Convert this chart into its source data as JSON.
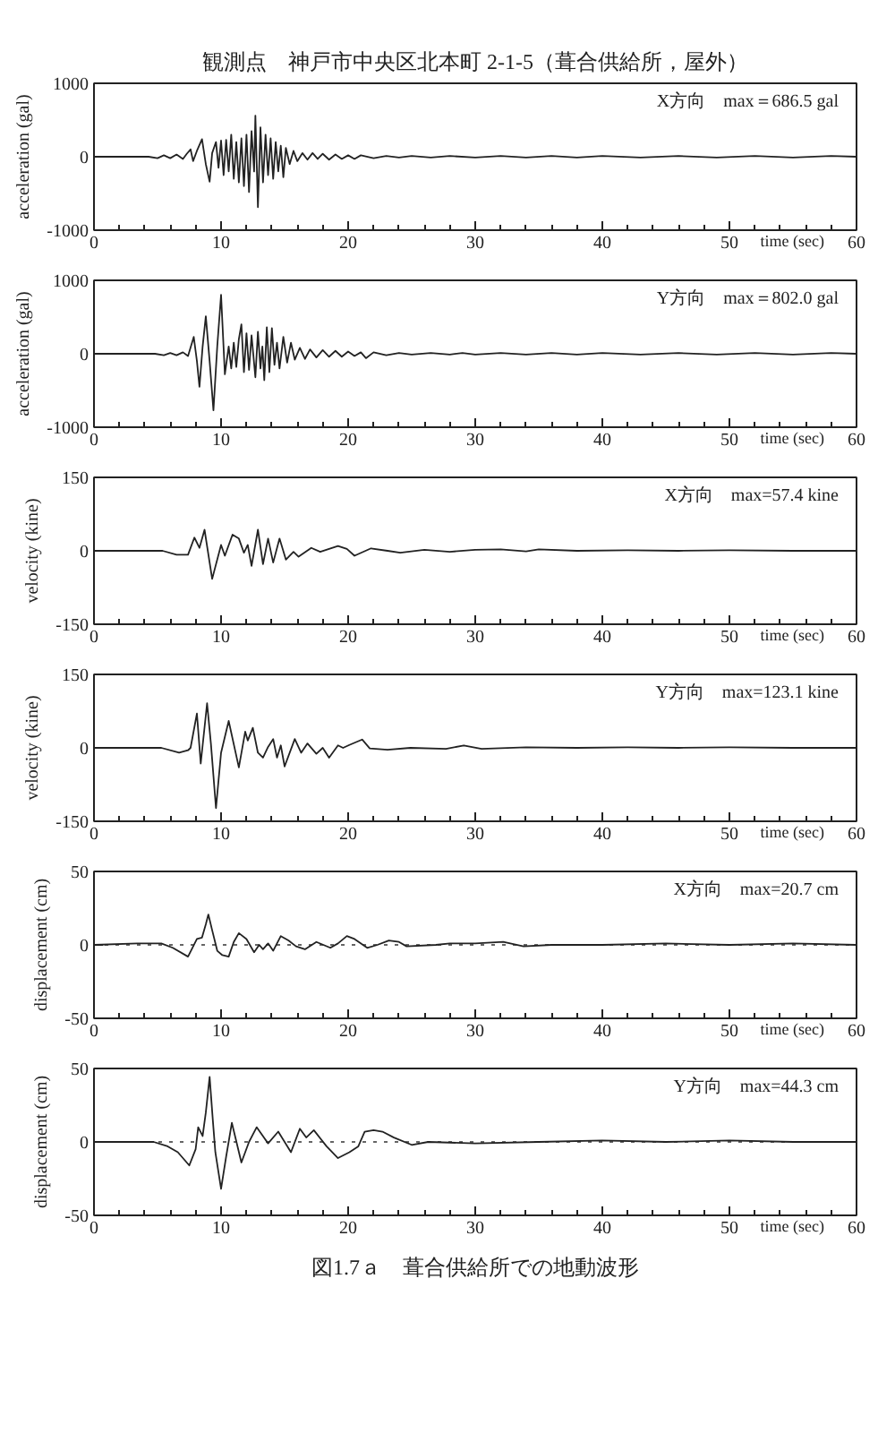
{
  "chart_data": [
    {
      "type": "line",
      "title": "観測点　神戸市中央区北本町 2-1-5（葺合供給所，屋外）",
      "xlabel": "time (sec)",
      "ylabel": "acceleration (gal)",
      "annotations": [
        "X方向　max＝686.5 gal"
      ],
      "color": "#222222",
      "xlim": [
        0,
        60
      ],
      "ylim": [
        -1000,
        1000
      ],
      "yticks": [
        -1000,
        0,
        1000
      ],
      "xticks": [
        0,
        {
          "value": 2,
          "label": null
        },
        {
          "value": 4,
          "label": null
        },
        {
          "value": 6,
          "label": null
        },
        {
          "value": 8,
          "label": null
        },
        10,
        {
          "value": 12,
          "label": null
        },
        {
          "value": 14,
          "label": null
        },
        {
          "value": 16,
          "label": null
        },
        {
          "value": 18,
          "label": null
        },
        20,
        {
          "value": 22,
          "label": null
        },
        {
          "value": 24,
          "label": null
        },
        {
          "value": 26,
          "label": null
        },
        {
          "value": 28,
          "label": null
        },
        30,
        {
          "value": 32,
          "label": null
        },
        {
          "value": 34,
          "label": null
        },
        {
          "value": 36,
          "label": null
        },
        {
          "value": 38,
          "label": null
        },
        40,
        {
          "value": 42,
          "label": null
        },
        {
          "value": 44,
          "label": null
        },
        {
          "value": 46,
          "label": null
        },
        {
          "value": 48,
          "label": null
        },
        50,
        {
          "value": 52,
          "label": null
        },
        {
          "value": 54,
          "label": null
        },
        {
          "value": 56,
          "label": null
        },
        {
          "value": 58,
          "label": null
        },
        60
      ],
      "x": [
        0,
        4.3,
        5,
        5.5,
        6,
        6.5,
        7,
        7.3,
        7.6,
        7.8,
        8.1,
        8.5,
        8.8,
        9.1,
        9.3,
        9.6,
        9.8,
        10,
        10.2,
        10.4,
        10.6,
        10.8,
        11,
        11.2,
        11.4,
        11.6,
        11.8,
        12,
        12.2,
        12.4,
        12.6,
        12.7,
        12.9,
        13.1,
        13.3,
        13.5,
        13.7,
        13.9,
        14.1,
        14.3,
        14.5,
        14.7,
        14.9,
        15.1,
        15.4,
        15.7,
        16,
        16.4,
        16.8,
        17.2,
        17.6,
        18,
        18.5,
        19,
        19.5,
        20,
        20.5,
        21,
        22,
        23,
        24,
        25,
        26.5,
        28,
        30,
        32,
        34,
        36,
        38,
        40,
        43,
        46,
        49,
        52,
        55,
        58,
        60
      ],
      "values": [
        0,
        0,
        -20,
        20,
        -20,
        30,
        -30,
        40,
        100,
        -60,
        80,
        240,
        -100,
        -340,
        50,
        200,
        -150,
        220,
        -250,
        230,
        -200,
        300,
        -300,
        200,
        -350,
        250,
        -400,
        300,
        -480,
        350,
        -200,
        560,
        -686.5,
        400,
        -350,
        300,
        -250,
        250,
        -300,
        200,
        -200,
        150,
        -280,
        120,
        -100,
        80,
        -60,
        50,
        -40,
        50,
        -30,
        40,
        -40,
        30,
        -30,
        20,
        -30,
        20,
        -20,
        10,
        -10,
        10,
        -10,
        10,
        -10,
        10,
        -10,
        10,
        -10,
        10,
        -10,
        10,
        -10,
        10,
        -10,
        10,
        0
      ]
    },
    {
      "type": "line",
      "xlabel": "time (sec)",
      "ylabel": "acceleration (gal)",
      "annotations": [
        "Y方向　max＝802.0 gal"
      ],
      "color": "#222222",
      "xlim": [
        0,
        60
      ],
      "ylim": [
        -1000,
        1000
      ],
      "yticks": [
        -1000,
        0,
        1000
      ],
      "xticks": [
        0,
        {
          "value": 2,
          "label": null
        },
        {
          "value": 4,
          "label": null
        },
        {
          "value": 6,
          "label": null
        },
        {
          "value": 8,
          "label": null
        },
        10,
        {
          "value": 12,
          "label": null
        },
        {
          "value": 14,
          "label": null
        },
        {
          "value": 16,
          "label": null
        },
        {
          "value": 18,
          "label": null
        },
        20,
        {
          "value": 22,
          "label": null
        },
        {
          "value": 24,
          "label": null
        },
        {
          "value": 26,
          "label": null
        },
        {
          "value": 28,
          "label": null
        },
        30,
        {
          "value": 32,
          "label": null
        },
        {
          "value": 34,
          "label": null
        },
        {
          "value": 36,
          "label": null
        },
        {
          "value": 38,
          "label": null
        },
        40,
        {
          "value": 42,
          "label": null
        },
        {
          "value": 44,
          "label": null
        },
        {
          "value": 46,
          "label": null
        },
        {
          "value": 48,
          "label": null
        },
        50,
        {
          "value": 52,
          "label": null
        },
        {
          "value": 54,
          "label": null
        },
        {
          "value": 56,
          "label": null
        },
        {
          "value": 58,
          "label": null
        },
        60
      ],
      "x": [
        0,
        4.8,
        5.5,
        6,
        6.5,
        7,
        7.4,
        7.85,
        8.1,
        8.3,
        8.55,
        8.8,
        9.1,
        9.4,
        9.7,
        10,
        10.3,
        10.6,
        10.8,
        11,
        11.2,
        11.4,
        11.6,
        11.8,
        12,
        12.2,
        12.4,
        12.7,
        12.9,
        13.1,
        13.25,
        13.4,
        13.6,
        13.8,
        14,
        14.2,
        14.4,
        14.6,
        14.9,
        15.2,
        15.5,
        15.8,
        16.2,
        16.6,
        17,
        17.5,
        18,
        18.5,
        19,
        19.5,
        20,
        20.5,
        21,
        21.4,
        22,
        23,
        24,
        25,
        26.5,
        28,
        29,
        30,
        32,
        34,
        36,
        38,
        40,
        43,
        46,
        49,
        52,
        55,
        58,
        60
      ],
      "values": [
        0,
        0,
        -20,
        10,
        -20,
        20,
        -30,
        230,
        -100,
        -450,
        100,
        510,
        -100,
        -770,
        100,
        802,
        -280,
        100,
        -200,
        150,
        -180,
        200,
        400,
        -250,
        280,
        -220,
        250,
        -320,
        300,
        -200,
        100,
        -360,
        360,
        -250,
        350,
        -150,
        150,
        -200,
        230,
        -120,
        150,
        -80,
        80,
        -70,
        60,
        -50,
        50,
        -40,
        40,
        -40,
        30,
        -30,
        20,
        -60,
        20,
        -20,
        10,
        -10,
        10,
        -10,
        10,
        -10,
        10,
        -10,
        10,
        -10,
        10,
        -10,
        10,
        -10,
        10,
        -10,
        10,
        0
      ]
    },
    {
      "type": "line",
      "xlabel": "time (sec)",
      "ylabel": "velocity (kine)",
      "annotations": [
        "X方向　max=57.4 kine"
      ],
      "color": "#222222",
      "xlim": [
        0,
        60
      ],
      "ylim": [
        -150,
        150
      ],
      "yticks": [
        -150,
        0,
        150
      ],
      "xticks": [
        0,
        {
          "value": 2,
          "label": null
        },
        {
          "value": 4,
          "label": null
        },
        {
          "value": 6,
          "label": null
        },
        {
          "value": 8,
          "label": null
        },
        10,
        {
          "value": 12,
          "label": null
        },
        {
          "value": 14,
          "label": null
        },
        {
          "value": 16,
          "label": null
        },
        {
          "value": 18,
          "label": null
        },
        20,
        {
          "value": 22,
          "label": null
        },
        {
          "value": 24,
          "label": null
        },
        {
          "value": 26,
          "label": null
        },
        {
          "value": 28,
          "label": null
        },
        30,
        {
          "value": 32,
          "label": null
        },
        {
          "value": 34,
          "label": null
        },
        {
          "value": 36,
          "label": null
        },
        {
          "value": 38,
          "label": null
        },
        40,
        {
          "value": 42,
          "label": null
        },
        {
          "value": 44,
          "label": null
        },
        {
          "value": 46,
          "label": null
        },
        {
          "value": 48,
          "label": null
        },
        50,
        {
          "value": 52,
          "label": null
        },
        {
          "value": 54,
          "label": null
        },
        {
          "value": 56,
          "label": null
        },
        {
          "value": 58,
          "label": null
        },
        60
      ],
      "x": [
        0,
        5.4,
        6.5,
        7.4,
        7.9,
        8.3,
        8.7,
        9.3,
        10,
        10.3,
        10.9,
        11.4,
        11.8,
        12.1,
        12.4,
        12.9,
        13.3,
        13.7,
        14.1,
        14.6,
        15.1,
        15.7,
        16.1,
        17.1,
        17.8,
        19.2,
        19.9,
        20.5,
        21.8,
        23.1,
        24.1,
        26,
        28,
        30,
        32,
        34,
        35,
        38,
        42,
        46,
        50,
        55,
        60
      ],
      "values": [
        0,
        0,
        -8,
        -8,
        27,
        6,
        43,
        -57.4,
        12,
        -10,
        33,
        25,
        -4,
        12,
        -31,
        43,
        -27,
        25,
        -24,
        25,
        -18,
        -2,
        -12,
        6,
        -2,
        10,
        4,
        -10,
        5,
        0,
        -4,
        2,
        -2,
        2,
        3,
        -1,
        3,
        0,
        1,
        0,
        1,
        0,
        0
      ]
    },
    {
      "type": "line",
      "xlabel": "time (sec)",
      "ylabel": "velocity (kine)",
      "annotations": [
        "Y方向　max=123.1 kine"
      ],
      "color": "#222222",
      "xlim": [
        0,
        60
      ],
      "ylim": [
        -150,
        150
      ],
      "yticks": [
        -150,
        0,
        150
      ],
      "xticks": [
        0,
        {
          "value": 2,
          "label": null
        },
        {
          "value": 4,
          "label": null
        },
        {
          "value": 6,
          "label": null
        },
        {
          "value": 8,
          "label": null
        },
        10,
        {
          "value": 12,
          "label": null
        },
        {
          "value": 14,
          "label": null
        },
        {
          "value": 16,
          "label": null
        },
        {
          "value": 18,
          "label": null
        },
        20,
        {
          "value": 22,
          "label": null
        },
        {
          "value": 24,
          "label": null
        },
        {
          "value": 26,
          "label": null
        },
        {
          "value": 28,
          "label": null
        },
        30,
        {
          "value": 32,
          "label": null
        },
        {
          "value": 34,
          "label": null
        },
        {
          "value": 36,
          "label": null
        },
        {
          "value": 38,
          "label": null
        },
        40,
        {
          "value": 42,
          "label": null
        },
        {
          "value": 44,
          "label": null
        },
        {
          "value": 46,
          "label": null
        },
        {
          "value": 48,
          "label": null
        },
        50,
        {
          "value": 52,
          "label": null
        },
        {
          "value": 54,
          "label": null
        },
        {
          "value": 56,
          "label": null
        },
        {
          "value": 58,
          "label": null
        },
        60
      ],
      "x": [
        0,
        5.3,
        6.7,
        7.4,
        7.6,
        8.1,
        8.4,
        8.9,
        9.2,
        9.6,
        10,
        10.6,
        11.4,
        11.9,
        12.1,
        12.5,
        12.9,
        13.3,
        13.7,
        14.1,
        14.4,
        14.7,
        15,
        15.8,
        16.3,
        16.8,
        17.5,
        18,
        18.5,
        19.2,
        19.6,
        20.1,
        21.1,
        21.7,
        23.1,
        24.9,
        27.7,
        29.1,
        30.5,
        34,
        38,
        42,
        46,
        50,
        55,
        60
      ],
      "values": [
        0,
        0,
        -10,
        -5,
        0,
        70,
        -32,
        91,
        9,
        -123.1,
        -10,
        55,
        -40,
        33,
        15,
        41,
        -10,
        -20,
        2,
        18,
        -20,
        5,
        -38,
        18,
        -10,
        9,
        -12,
        0,
        -20,
        5,
        0,
        6,
        17,
        -1,
        -4,
        0,
        -2,
        5,
        -2,
        1,
        0,
        1,
        0,
        1,
        0,
        0
      ]
    },
    {
      "type": "line",
      "xlabel": "time (sec)",
      "ylabel": "displacement (cm)",
      "annotations": [
        "X方向　max=20.7 cm"
      ],
      "color": "#222222",
      "xlim": [
        0,
        60
      ],
      "ylim": [
        -50,
        50
      ],
      "yticks": [
        -50,
        0,
        50
      ],
      "ref_lines": [
        {
          "axis": "y",
          "value": 0,
          "color": "#666666",
          "line_style": "dotted"
        }
      ],
      "xticks": [
        0,
        {
          "value": 2,
          "label": null
        },
        {
          "value": 4,
          "label": null
        },
        {
          "value": 6,
          "label": null
        },
        {
          "value": 8,
          "label": null
        },
        10,
        {
          "value": 12,
          "label": null
        },
        {
          "value": 14,
          "label": null
        },
        {
          "value": 16,
          "label": null
        },
        {
          "value": 18,
          "label": null
        },
        20,
        {
          "value": 22,
          "label": null
        },
        {
          "value": 24,
          "label": null
        },
        {
          "value": 26,
          "label": null
        },
        {
          "value": 28,
          "label": null
        },
        30,
        {
          "value": 32,
          "label": null
        },
        {
          "value": 34,
          "label": null
        },
        {
          "value": 36,
          "label": null
        },
        {
          "value": 38,
          "label": null
        },
        40,
        {
          "value": 42,
          "label": null
        },
        {
          "value": 44,
          "label": null
        },
        {
          "value": 46,
          "label": null
        },
        {
          "value": 48,
          "label": null
        },
        50,
        {
          "value": 52,
          "label": null
        },
        {
          "value": 54,
          "label": null
        },
        {
          "value": 56,
          "label": null
        },
        {
          "value": 58,
          "label": null
        },
        60
      ],
      "x": [
        0,
        3.4,
        5.3,
        6.2,
        7.4,
        8.1,
        8.5,
        8.8,
        9,
        9.3,
        9.7,
        10.1,
        10.6,
        11,
        11.4,
        12,
        12.6,
        13,
        13.3,
        13.7,
        14.1,
        14.7,
        15.3,
        15.9,
        16.6,
        17.5,
        18.6,
        19.2,
        19.9,
        20.5,
        21.5,
        22.3,
        23.2,
        24,
        24.6,
        26.9,
        28,
        30,
        32.2,
        33.8,
        36,
        40,
        45,
        50,
        55,
        60
      ],
      "values": [
        0,
        1,
        1,
        -2,
        -8,
        4,
        5,
        14,
        20.7,
        10,
        -4,
        -7,
        -8,
        2,
        8,
        4,
        -5,
        0,
        -3,
        1,
        -4,
        6,
        3,
        -1,
        -3,
        2,
        -2,
        1,
        6,
        4,
        -2,
        0,
        3,
        2,
        -1,
        0,
        1,
        1,
        2,
        -1,
        0,
        0,
        1,
        0,
        1,
        0
      ]
    },
    {
      "type": "line",
      "xlabel": "time (sec)",
      "ylabel": "displacement (cm)",
      "annotations": [
        "Y方向　max=44.3 cm",
        "図1.7ａ　葺合供給所での地動波形"
      ],
      "color": "#222222",
      "xlim": [
        0,
        60
      ],
      "ylim": [
        -50,
        50
      ],
      "yticks": [
        -50,
        0,
        50
      ],
      "ref_lines": [
        {
          "axis": "y",
          "value": 0,
          "color": "#666666",
          "line_style": "dotted"
        }
      ],
      "xticks": [
        0,
        {
          "value": 2,
          "label": null
        },
        {
          "value": 4,
          "label": null
        },
        {
          "value": 6,
          "label": null
        },
        {
          "value": 8,
          "label": null
        },
        10,
        {
          "value": 12,
          "label": null
        },
        {
          "value": 14,
          "label": null
        },
        {
          "value": 16,
          "label": null
        },
        {
          "value": 18,
          "label": null
        },
        20,
        {
          "value": 22,
          "label": null
        },
        {
          "value": 24,
          "label": null
        },
        {
          "value": 26,
          "label": null
        },
        {
          "value": 28,
          "label": null
        },
        30,
        {
          "value": 32,
          "label": null
        },
        {
          "value": 34,
          "label": null
        },
        {
          "value": 36,
          "label": null
        },
        {
          "value": 38,
          "label": null
        },
        40,
        {
          "value": 42,
          "label": null
        },
        {
          "value": 44,
          "label": null
        },
        {
          "value": 46,
          "label": null
        },
        {
          "value": 48,
          "label": null
        },
        50,
        {
          "value": 52,
          "label": null
        },
        {
          "value": 54,
          "label": null
        },
        {
          "value": 56,
          "label": null
        },
        {
          "value": 58,
          "label": null
        },
        60
      ],
      "x": [
        0,
        4.7,
        5.8,
        6.6,
        7.5,
        8,
        8.2,
        8.55,
        8.8,
        9.1,
        9.35,
        9.55,
        10,
        10.4,
        10.85,
        11.6,
        12.2,
        12.8,
        13.7,
        14.5,
        15.5,
        16.2,
        16.7,
        17.3,
        18.3,
        19.2,
        20.1,
        20.8,
        21.3,
        22,
        22.7,
        23.6,
        25,
        26.3,
        30,
        35,
        40,
        45,
        50,
        55,
        60
      ],
      "values": [
        0,
        0,
        -3,
        -7,
        -16,
        -5,
        10,
        4,
        20,
        44.3,
        15,
        -7,
        -32,
        -10,
        13,
        -14,
        0,
        10,
        -1,
        7,
        -7,
        9,
        3,
        8,
        -3,
        -11,
        -7,
        -3,
        7,
        8,
        7,
        3,
        -2,
        0,
        -1,
        0,
        1,
        0,
        1,
        0,
        0
      ]
    }
  ]
}
